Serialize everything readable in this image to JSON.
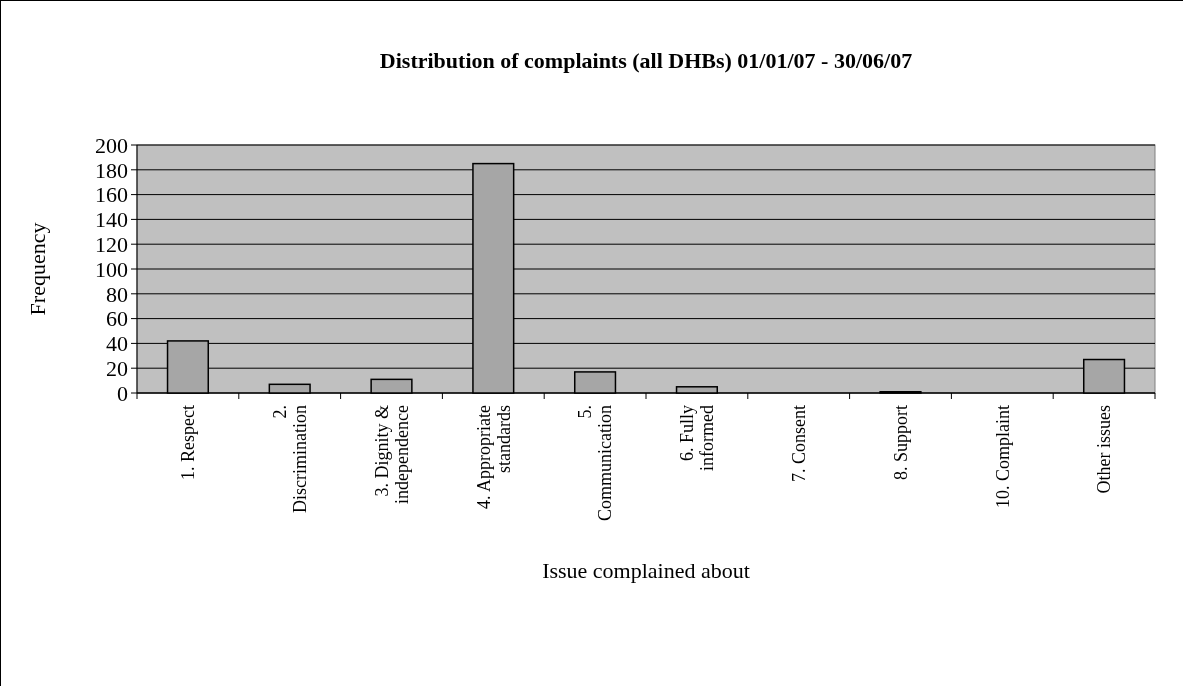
{
  "chart_data": {
    "type": "bar",
    "title": "Distribution of complaints (all DHBs) 01/01/07 - 30/06/07",
    "xlabel": "Issue complained about",
    "ylabel": "Frequency",
    "categories": [
      "1. Respect",
      "2. Discrimination",
      "3. Dignity & independence",
      "4. Appropriate standards",
      "5. Communication",
      "6. Fully informed",
      "7. Consent",
      "8. Support",
      "10. Complaint",
      "Other issues"
    ],
    "values": [
      42,
      7,
      11,
      185,
      17,
      5,
      0,
      1,
      0,
      27
    ],
    "color": "#a6a6a6",
    "ylim": [
      0,
      200
    ],
    "yticks": [
      0,
      20,
      40,
      60,
      80,
      100,
      120,
      140,
      160,
      180,
      200
    ],
    "grid": "y"
  }
}
